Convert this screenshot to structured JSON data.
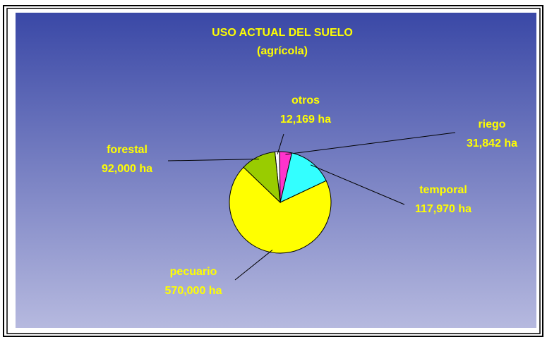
{
  "chart_data": {
    "type": "pie",
    "title": "USO ACTUAL DEL SUELO",
    "subtitle": "(agrícola)",
    "categories": [
      "otros",
      "riego",
      "temporal",
      "pecuario",
      "forestal"
    ],
    "values": [
      12169,
      31842,
      117970,
      570000,
      92000
    ],
    "value_labels": [
      "12,169 ha",
      "31,842 ha",
      "117,970 ha",
      "570,000 ha",
      "92,000 ha"
    ],
    "colors": [
      "#ffffff",
      "#ff33cc",
      "#33ffff",
      "#ffff00",
      "#99cc00"
    ]
  }
}
